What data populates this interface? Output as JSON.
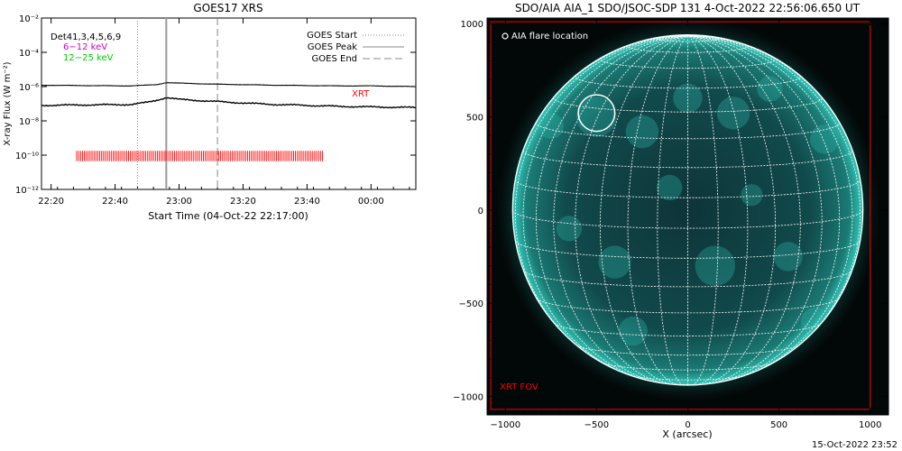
{
  "colors": {
    "xrt": "#ff0000",
    "low_band": "#cc00cc",
    "high_band": "#00cc00",
    "sun": "#1fb3a8",
    "grid": "#ffffff"
  },
  "chart_data": [
    {
      "type": "line",
      "title": "GOES17 XRS",
      "xlabel": "Start Time (04-Oct-22 22:17:00)",
      "ylabel": "X-ray Flux (W m⁻²)",
      "y_scale": "log",
      "ylim": [
        1e-12,
        0.01
      ],
      "y_ticks": [
        {
          "v": -2,
          "label": "10⁻²"
        },
        {
          "v": -4,
          "label": "10⁻⁴"
        },
        {
          "v": -6,
          "label": "10⁻⁶"
        },
        {
          "v": -8,
          "label": "10⁻⁸"
        },
        {
          "v": -10,
          "label": "10⁻¹⁰"
        },
        {
          "v": -12,
          "label": "10⁻¹²"
        }
      ],
      "xlim": [
        "22:17",
        "00:14"
      ],
      "x_ticks": [
        "22:20",
        "22:40",
        "23:00",
        "23:20",
        "23:40",
        "00:00"
      ],
      "legend_topleft": {
        "detectors": "Det41,3,4,5,6,9",
        "low": "6−12 keV",
        "high": "12−25 keV"
      },
      "legend_topright": [
        "GOES Start",
        "GOES Peak",
        "GOES End"
      ],
      "event_lines": {
        "start": "22:47",
        "peak": "22:56",
        "end": "23:12"
      },
      "xrt_label": "XRT",
      "xrt_coverage": {
        "start": "22:28",
        "end": "23:45"
      },
      "series": [
        {
          "band": "low",
          "x": [
            "22:17",
            "22:30",
            "22:45",
            "22:53",
            "22:56",
            "23:00",
            "23:10",
            "23:20",
            "23:30",
            "23:40",
            "23:50",
            "00:00",
            "00:14"
          ],
          "values": [
            1.2e-06,
            1.15e-06,
            1.1e-06,
            1.3e-06,
            1.7e-06,
            1.6e-06,
            1.4e-06,
            1.3e-06,
            1.2e-06,
            1.15e-06,
            1.1e-06,
            1.1e-06,
            1e-06
          ]
        },
        {
          "band": "high",
          "x": [
            "22:17",
            "22:30",
            "22:45",
            "22:50",
            "22:53",
            "22:56",
            "23:00",
            "23:10",
            "23:20",
            "23:30",
            "23:40",
            "23:50",
            "00:00",
            "00:14"
          ],
          "values": [
            8e-08,
            8.5e-08,
            9e-08,
            1.2e-07,
            1.6e-07,
            2.3e-07,
            1.8e-07,
            1.4e-07,
            1.1e-07,
            9e-08,
            8e-08,
            7e-08,
            6.5e-08,
            6e-08
          ]
        }
      ]
    },
    {
      "type": "image",
      "title": "SDO/AIA AIA_1 SDO/JSOC-SDP 131  4-Oct-2022 22:56:06.650 UT",
      "xlabel": "X (arcsec)",
      "ylabel": "",
      "xlim": [
        -1100,
        1100
      ],
      "ylim": [
        -1100,
        1030
      ],
      "x_ticks": [
        "−1000",
        "−500",
        "0",
        "500",
        "1000"
      ],
      "y_ticks": [
        "1000",
        "500",
        "0",
        "−500",
        "−1000"
      ],
      "flare_legend": "AIA flare location",
      "flare_location": {
        "x": -500,
        "y": 520,
        "r": 100
      },
      "fov_label": "XRT FOV",
      "fov": {
        "x0": -1080,
        "x1": 1000,
        "y0": -1070,
        "y1": 1010
      },
      "solar_radius": 960
    }
  ],
  "footer": {
    "timestamp": "15-Oct-2022 23:52"
  }
}
